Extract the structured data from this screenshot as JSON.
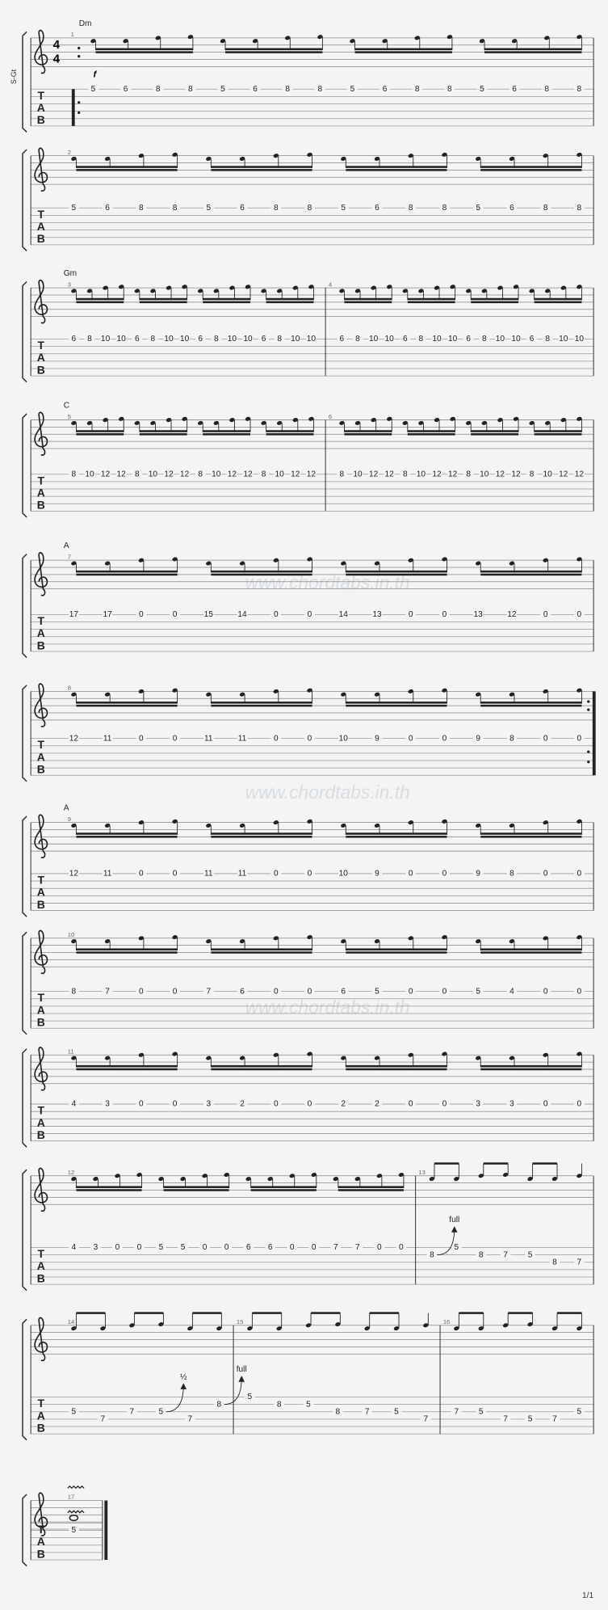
{
  "instrument": "S-Gt",
  "time_signature": {
    "top": "4",
    "bottom": "4"
  },
  "tab_label": [
    "T",
    "A",
    "B"
  ],
  "page": "1/1",
  "watermark": "www.chordtabs.in.th",
  "systems": [
    {
      "measures": [
        {
          "number": 1,
          "chord": "Dm",
          "dynamic": "f",
          "frets": [
            5,
            6,
            8,
            8,
            5,
            6,
            8,
            8,
            5,
            6,
            8,
            8,
            5,
            6,
            8,
            8
          ],
          "strings": [
            1,
            1,
            1,
            1,
            1,
            1,
            1,
            1,
            1,
            1,
            1,
            1,
            1,
            1,
            1,
            1
          ]
        }
      ]
    },
    {
      "measures": [
        {
          "number": 2,
          "frets": [
            5,
            6,
            8,
            8,
            5,
            6,
            8,
            8,
            5,
            6,
            8,
            8,
            5,
            6,
            8,
            8
          ],
          "strings": [
            1,
            1,
            1,
            1,
            1,
            1,
            1,
            1,
            1,
            1,
            1,
            1,
            1,
            1,
            1,
            1
          ]
        }
      ]
    },
    {
      "measures": [
        {
          "number": 3,
          "chord": "Gm",
          "frets": [
            6,
            8,
            10,
            10,
            6,
            8,
            10,
            10,
            6,
            8,
            10,
            10,
            6,
            8,
            10,
            10
          ],
          "strings": [
            1,
            1,
            1,
            1,
            1,
            1,
            1,
            1,
            1,
            1,
            1,
            1,
            1,
            1,
            1,
            1
          ]
        },
        {
          "number": 4,
          "frets": [
            6,
            8,
            10,
            10,
            6,
            8,
            10,
            10,
            6,
            8,
            10,
            10,
            6,
            8,
            10,
            10
          ],
          "strings": [
            1,
            1,
            1,
            1,
            1,
            1,
            1,
            1,
            1,
            1,
            1,
            1,
            1,
            1,
            1,
            1
          ]
        }
      ]
    },
    {
      "measures": [
        {
          "number": 5,
          "chord": "C",
          "frets": [
            8,
            10,
            12,
            12,
            8,
            10,
            12,
            12,
            8,
            10,
            12,
            12,
            8,
            10,
            12,
            12
          ],
          "strings": [
            1,
            1,
            1,
            1,
            1,
            1,
            1,
            1,
            1,
            1,
            1,
            1,
            1,
            1,
            1,
            1
          ]
        },
        {
          "number": 6,
          "frets": [
            8,
            10,
            12,
            12,
            8,
            10,
            12,
            12,
            8,
            10,
            12,
            12,
            8,
            10,
            12,
            12
          ],
          "strings": [
            1,
            1,
            1,
            1,
            1,
            1,
            1,
            1,
            1,
            1,
            1,
            1,
            1,
            1,
            1,
            1
          ]
        }
      ]
    },
    {
      "measures": [
        {
          "number": 7,
          "chord": "A",
          "frets": [
            17,
            17,
            0,
            0,
            15,
            14,
            0,
            0,
            14,
            13,
            0,
            0,
            13,
            12,
            0,
            0
          ],
          "strings": [
            1,
            1,
            1,
            1,
            1,
            1,
            1,
            1,
            1,
            1,
            1,
            1,
            1,
            1,
            1,
            1
          ]
        }
      ]
    },
    {
      "measures": [
        {
          "number": 8,
          "frets": [
            12,
            11,
            0,
            0,
            11,
            11,
            0,
            0,
            10,
            9,
            0,
            0,
            9,
            8,
            0,
            0
          ],
          "strings": [
            1,
            1,
            1,
            1,
            1,
            1,
            1,
            1,
            1,
            1,
            1,
            1,
            1,
            1,
            1,
            1
          ]
        }
      ]
    },
    {
      "measures": [
        {
          "number": 9,
          "chord": "A",
          "frets": [
            12,
            11,
            0,
            0,
            11,
            11,
            0,
            0,
            10,
            9,
            0,
            0,
            9,
            8,
            0,
            0
          ],
          "strings": [
            1,
            1,
            1,
            1,
            1,
            1,
            1,
            1,
            1,
            1,
            1,
            1,
            1,
            1,
            1,
            1
          ]
        }
      ]
    },
    {
      "measures": [
        {
          "number": 10,
          "frets": [
            8,
            7,
            0,
            0,
            7,
            6,
            0,
            0,
            6,
            5,
            0,
            0,
            5,
            4,
            0,
            0
          ],
          "strings": [
            1,
            1,
            1,
            1,
            1,
            1,
            1,
            1,
            1,
            1,
            1,
            1,
            1,
            1,
            1,
            1
          ]
        }
      ]
    },
    {
      "measures": [
        {
          "number": 11,
          "frets": [
            4,
            3,
            0,
            0,
            3,
            2,
            0,
            0,
            2,
            2,
            0,
            0,
            3,
            3,
            0,
            0
          ],
          "strings": [
            1,
            1,
            1,
            1,
            1,
            1,
            1,
            1,
            1,
            1,
            1,
            1,
            1,
            1,
            1,
            1
          ]
        }
      ]
    },
    {
      "measures": [
        {
          "number": 12,
          "frets": [
            4,
            3,
            0,
            0,
            5,
            5,
            0,
            0,
            6,
            6,
            0,
            0,
            7,
            7,
            0,
            0
          ],
          "strings": [
            1,
            1,
            1,
            1,
            1,
            1,
            1,
            1,
            1,
            1,
            1,
            1,
            1,
            1,
            1,
            1
          ]
        },
        {
          "number": 13,
          "frets": [
            8,
            5,
            8,
            7,
            5,
            8,
            7
          ],
          "strings": [
            2,
            1,
            2,
            2,
            2,
            3,
            3
          ],
          "bends": [
            "full"
          ]
        }
      ]
    },
    {
      "measures": [
        {
          "number": 14,
          "frets": [
            5,
            7,
            7,
            5,
            7,
            8
          ],
          "strings": [
            3,
            4,
            3,
            3,
            4,
            2
          ],
          "bends": [
            "½",
            "full"
          ]
        },
        {
          "number": 15,
          "frets": [
            5,
            8,
            5,
            8,
            7,
            5,
            7
          ],
          "strings": [
            1,
            2,
            2,
            3,
            3,
            3,
            4
          ]
        },
        {
          "number": 16,
          "frets": [
            7,
            5,
            7,
            5,
            7,
            5
          ],
          "strings": [
            3,
            3,
            4,
            4,
            4,
            3
          ]
        }
      ]
    },
    {
      "measures": [
        {
          "number": 17,
          "frets": [
            5
          ],
          "strings": [
            2
          ]
        }
      ]
    }
  ]
}
